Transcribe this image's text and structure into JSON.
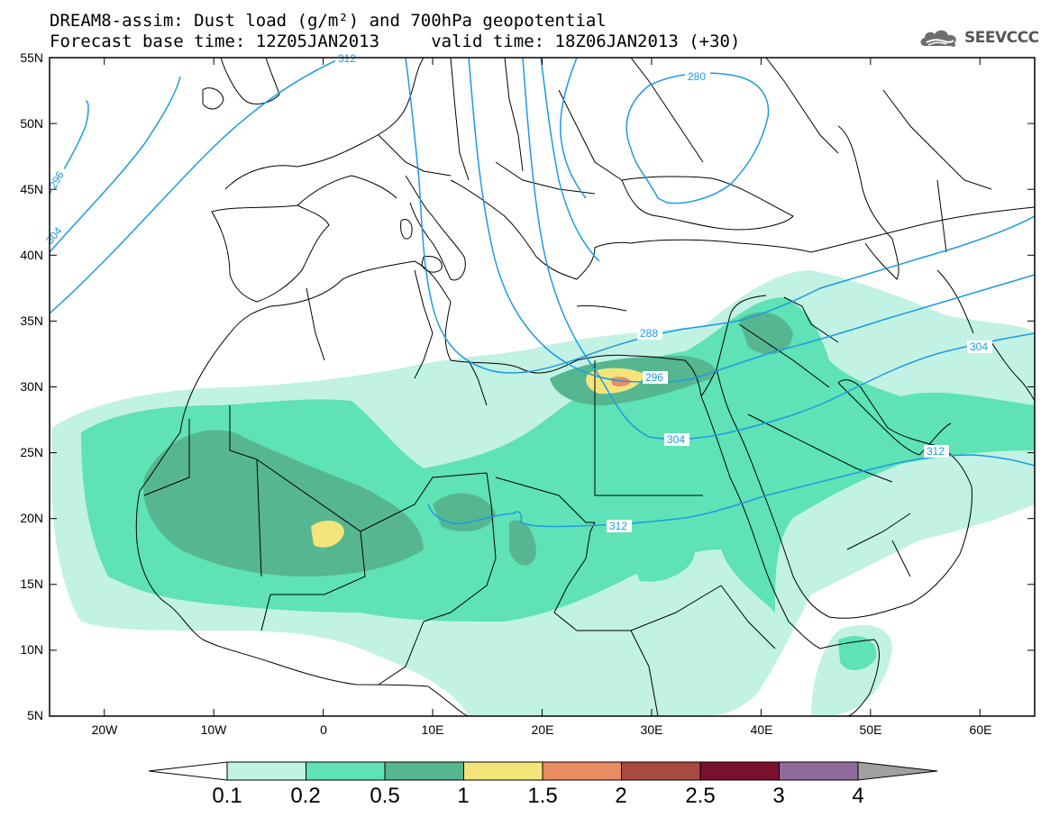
{
  "title": {
    "line1": "DREAM8-assim: Dust load (g/m²) and 700hPa geopotential",
    "line2": "Forecast base time: 12Z05JAN2013     valid time: 18Z06JAN2013 (+30)"
  },
  "logo": {
    "text": "SEEVCCC",
    "icon": "cloud-icon"
  },
  "axes": {
    "lat_labels": [
      "55N",
      "50N",
      "45N",
      "40N",
      "35N",
      "30N",
      "25N",
      "20N",
      "15N",
      "10N",
      "5N"
    ],
    "lon_labels": [
      "20W",
      "10W",
      "0",
      "10E",
      "20E",
      "30E",
      "40E",
      "50E",
      "60E"
    ],
    "lon_range": [
      -25,
      65
    ],
    "lat_range": [
      5,
      55
    ]
  },
  "contour_labels": [
    "312",
    "280",
    "296",
    "304",
    "288",
    "296",
    "304",
    "304",
    "312",
    "312"
  ],
  "colorbar": {
    "labels": [
      "0.1",
      "0.2",
      "0.5",
      "1",
      "1.5",
      "2",
      "2.5",
      "3",
      "4"
    ],
    "colors": [
      "#c1f2e4",
      "#5ee2b6",
      "#56b690",
      "#f4e57b",
      "#ea8b62",
      "#a84a40",
      "#7a0f2e",
      "#8e6b9b",
      "#a0a0a0"
    ]
  }
}
